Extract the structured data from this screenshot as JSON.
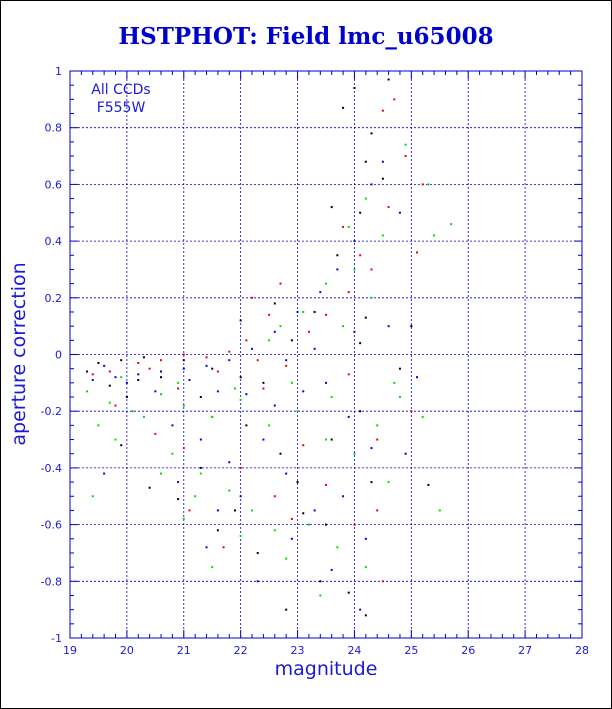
{
  "chart_data": {
    "type": "scatter",
    "title": "HSTPHOT: Field lmc_u65008",
    "xlabel": "magnitude",
    "ylabel": "aperture correction",
    "xlim": [
      19,
      28
    ],
    "ylim": [
      -1,
      1
    ],
    "x_ticks": [
      "19",
      "20",
      "21",
      "22",
      "23",
      "24",
      "25",
      "26",
      "27",
      "28"
    ],
    "y_ticks": [
      "-1",
      "-0.8",
      "-0.6",
      "-0.4",
      "-0.2",
      "0",
      "0.2",
      "0.4",
      "0.6",
      "0.8",
      "1"
    ],
    "grid": true,
    "annotations": [
      "All CCDs",
      "F555W"
    ],
    "colors": {
      "series_1": "#000000",
      "series_2": "#ee0000",
      "series_3": "#00dd00",
      "series_4": "#0000ee",
      "axis": "#0000cc",
      "text": "#1a1ad6"
    },
    "series": [
      {
        "color": "#000000",
        "points": [
          [
            24.0,
            0.94
          ],
          [
            24.6,
            0.97
          ],
          [
            23.8,
            0.87
          ],
          [
            24.2,
            0.68
          ],
          [
            23.6,
            0.52
          ],
          [
            24.3,
            0.78
          ],
          [
            24.2,
            0.13
          ],
          [
            24.1,
            0.04
          ],
          [
            24.2,
            -0.92
          ],
          [
            23.9,
            -0.84
          ],
          [
            19.5,
            -0.03
          ],
          [
            19.9,
            -0.02
          ],
          [
            20.3,
            -0.01
          ],
          [
            21.0,
            -0.02
          ],
          [
            21.5,
            -0.05
          ],
          [
            22.0,
            -0.08
          ],
          [
            22.4,
            -0.1
          ],
          [
            22.9,
            0.05
          ],
          [
            23.3,
            0.15
          ],
          [
            23.6,
            -0.3
          ],
          [
            23.1,
            -0.56
          ],
          [
            22.3,
            -0.7
          ],
          [
            21.6,
            -0.62
          ],
          [
            20.9,
            -0.51
          ],
          [
            20.4,
            -0.47
          ],
          [
            19.9,
            -0.32
          ],
          [
            20.0,
            -0.15
          ],
          [
            20.6,
            -0.08
          ],
          [
            21.3,
            -0.15
          ],
          [
            22.1,
            -0.25
          ],
          [
            22.7,
            -0.35
          ],
          [
            23.0,
            -0.45
          ],
          [
            23.5,
            -0.6
          ],
          [
            24.1,
            -0.2
          ],
          [
            24.3,
            -0.45
          ],
          [
            25.0,
            0.1
          ],
          [
            24.8,
            -0.05
          ],
          [
            25.3,
            -0.46
          ],
          [
            22.6,
            0.18
          ],
          [
            22.0,
            0.12
          ],
          [
            21.3,
            -0.4
          ],
          [
            21.9,
            -0.55
          ],
          [
            23.7,
            0.35
          ],
          [
            24.1,
            0.5
          ],
          [
            23.4,
            -0.8
          ],
          [
            22.8,
            -0.9
          ],
          [
            24.5,
            0.62
          ],
          [
            19.3,
            -0.06
          ],
          [
            19.7,
            -0.11
          ],
          [
            20.2,
            -0.09
          ]
        ]
      },
      {
        "color": "#ee0000",
        "points": [
          [
            24.7,
            0.9
          ],
          [
            24.5,
            0.86
          ],
          [
            24.9,
            0.7
          ],
          [
            25.2,
            0.6
          ],
          [
            25.1,
            0.36
          ],
          [
            24.6,
            0.52
          ],
          [
            24.3,
            0.3
          ],
          [
            23.9,
            0.22
          ],
          [
            23.5,
            0.14
          ],
          [
            22.5,
            0.14
          ],
          [
            22.1,
            0.05
          ],
          [
            21.8,
            0.01
          ],
          [
            21.4,
            -0.01
          ],
          [
            21.0,
            0.0
          ],
          [
            20.6,
            -0.02
          ],
          [
            20.2,
            -0.03
          ],
          [
            19.7,
            -0.06
          ],
          [
            19.4,
            -0.07
          ],
          [
            23.2,
            0.08
          ],
          [
            22.8,
            -0.04
          ],
          [
            22.4,
            -0.12
          ],
          [
            21.5,
            -0.22
          ],
          [
            21.0,
            -0.33
          ],
          [
            20.5,
            -0.28
          ],
          [
            22.0,
            -0.4
          ],
          [
            22.6,
            -0.5
          ],
          [
            23.1,
            -0.32
          ],
          [
            23.5,
            -0.46
          ],
          [
            24.0,
            -0.6
          ],
          [
            24.4,
            -0.55
          ],
          [
            24.5,
            -0.8
          ],
          [
            22.9,
            -0.58
          ],
          [
            21.7,
            -0.68
          ],
          [
            21.1,
            -0.55
          ],
          [
            19.8,
            -0.18
          ],
          [
            20.9,
            -0.12
          ],
          [
            23.8,
            0.45
          ],
          [
            24.1,
            0.35
          ],
          [
            22.7,
            0.25
          ],
          [
            22.2,
            0.2
          ],
          [
            24.4,
            -0.3
          ],
          [
            23.9,
            -0.07
          ],
          [
            25.0,
            -0.2
          ],
          [
            20.4,
            -0.05
          ],
          [
            21.6,
            -0.06
          ],
          [
            22.3,
            -0.02
          ]
        ]
      },
      {
        "color": "#00dd00",
        "points": [
          [
            24.9,
            0.74
          ],
          [
            25.3,
            0.6
          ],
          [
            25.7,
            0.46
          ],
          [
            25.4,
            0.42
          ],
          [
            24.5,
            0.42
          ],
          [
            24.0,
            0.3
          ],
          [
            23.5,
            0.25
          ],
          [
            23.1,
            0.15
          ],
          [
            22.7,
            0.1
          ],
          [
            23.9,
            0.45
          ],
          [
            24.2,
            0.55
          ],
          [
            19.3,
            -0.13
          ],
          [
            19.7,
            -0.17
          ],
          [
            20.1,
            -0.2
          ],
          [
            20.6,
            -0.14
          ],
          [
            21.0,
            -0.18
          ],
          [
            21.5,
            -0.22
          ],
          [
            22.0,
            -0.16
          ],
          [
            22.5,
            -0.25
          ],
          [
            23.0,
            -0.2
          ],
          [
            23.5,
            -0.3
          ],
          [
            24.0,
            -0.35
          ],
          [
            24.4,
            -0.25
          ],
          [
            24.8,
            -0.15
          ],
          [
            19.5,
            -0.25
          ],
          [
            19.8,
            -0.3
          ],
          [
            20.3,
            -0.22
          ],
          [
            20.8,
            -0.35
          ],
          [
            21.3,
            -0.42
          ],
          [
            21.8,
            -0.48
          ],
          [
            22.2,
            -0.55
          ],
          [
            22.6,
            -0.62
          ],
          [
            23.2,
            -0.6
          ],
          [
            23.7,
            -0.68
          ],
          [
            22.0,
            -0.64
          ],
          [
            21.2,
            -0.5
          ],
          [
            24.2,
            -0.75
          ],
          [
            24.6,
            -0.45
          ],
          [
            25.5,
            -0.55
          ],
          [
            19.4,
            -0.5
          ],
          [
            20.6,
            -0.42
          ],
          [
            21.0,
            -0.58
          ],
          [
            21.5,
            -0.75
          ],
          [
            22.8,
            -0.72
          ],
          [
            23.4,
            -0.85
          ],
          [
            22.5,
            0.05
          ],
          [
            23.8,
            0.1
          ],
          [
            24.3,
            0.2
          ],
          [
            24.7,
            -0.1
          ],
          [
            25.2,
            -0.22
          ],
          [
            19.9,
            -0.08
          ],
          [
            20.9,
            -0.1
          ],
          [
            21.9,
            -0.12
          ],
          [
            22.9,
            -0.1
          ],
          [
            23.6,
            -0.15
          ]
        ]
      },
      {
        "color": "#0000ee",
        "points": [
          [
            24.5,
            0.68
          ],
          [
            24.3,
            0.6
          ],
          [
            24.8,
            0.5
          ],
          [
            24.0,
            0.4
          ],
          [
            23.7,
            0.3
          ],
          [
            23.4,
            0.22
          ],
          [
            23.0,
            0.15
          ],
          [
            22.6,
            0.08
          ],
          [
            22.2,
            0.02
          ],
          [
            21.8,
            -0.02
          ],
          [
            21.4,
            -0.04
          ],
          [
            21.0,
            -0.05
          ],
          [
            20.6,
            -0.06
          ],
          [
            20.2,
            -0.07
          ],
          [
            19.8,
            -0.08
          ],
          [
            19.4,
            -0.09
          ],
          [
            19.6,
            -0.04
          ],
          [
            20.0,
            -0.1
          ],
          [
            20.5,
            -0.13
          ],
          [
            21.1,
            -0.09
          ],
          [
            21.6,
            -0.13
          ],
          [
            22.1,
            -0.14
          ],
          [
            22.6,
            -0.18
          ],
          [
            23.1,
            -0.13
          ],
          [
            23.5,
            -0.1
          ],
          [
            23.9,
            -0.22
          ],
          [
            24.3,
            -0.33
          ],
          [
            22.4,
            -0.3
          ],
          [
            21.8,
            -0.38
          ],
          [
            21.3,
            -0.3
          ],
          [
            20.8,
            -0.25
          ],
          [
            22.0,
            -0.5
          ],
          [
            22.8,
            -0.42
          ],
          [
            23.3,
            -0.55
          ],
          [
            23.8,
            -0.5
          ],
          [
            24.2,
            -0.65
          ],
          [
            21.6,
            -0.55
          ],
          [
            20.9,
            -0.45
          ],
          [
            22.9,
            -0.65
          ],
          [
            23.6,
            -0.76
          ],
          [
            24.1,
            -0.9
          ],
          [
            19.6,
            -0.42
          ],
          [
            21.4,
            -0.68
          ],
          [
            22.3,
            -0.8
          ],
          [
            24.6,
            0.1
          ],
          [
            24.0,
            0.08
          ],
          [
            23.3,
            0.02
          ],
          [
            22.8,
            -0.02
          ],
          [
            25.1,
            -0.08
          ],
          [
            24.9,
            -0.35
          ]
        ]
      }
    ]
  }
}
